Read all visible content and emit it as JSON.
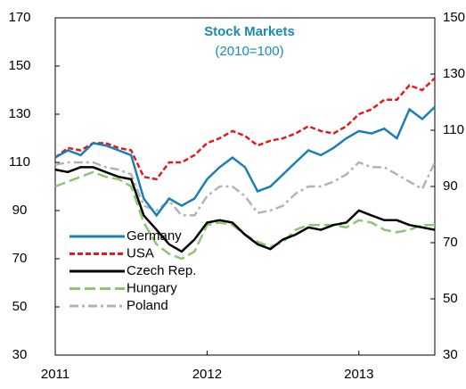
{
  "chart_data": {
    "type": "line",
    "title": "Stock Markets",
    "subtitle": "(2010=100)",
    "x": [
      2011.0,
      2011.083,
      2011.167,
      2011.25,
      2011.333,
      2011.417,
      2011.5,
      2011.583,
      2011.667,
      2011.75,
      2011.833,
      2011.917,
      2012.0,
      2012.083,
      2012.167,
      2012.25,
      2012.333,
      2012.417,
      2012.5,
      2012.583,
      2012.667,
      2012.75,
      2012.833,
      2012.917,
      2013.0,
      2013.083,
      2013.167,
      2013.25,
      2013.333,
      2013.417,
      2013.5
    ],
    "xlim": [
      2011,
      2013.5
    ],
    "xticks": [
      2011,
      2012,
      2013
    ],
    "ylim": [
      30,
      170
    ],
    "yticks": [
      30,
      50,
      70,
      90,
      110,
      130,
      150,
      170
    ],
    "y2lim": [
      30,
      150
    ],
    "y2ticks": [
      30,
      50,
      70,
      90,
      110,
      130,
      150
    ],
    "grid": false,
    "legend": "lower left",
    "series": [
      {
        "name": "Germany",
        "color": "#1a7fb5",
        "dash": "solid",
        "values": [
          112,
          115,
          113,
          118,
          117,
          115,
          113,
          95,
          88,
          95,
          92,
          95,
          103,
          108,
          112,
          108,
          98,
          100,
          105,
          110,
          115,
          113,
          116,
          120,
          123,
          122,
          124,
          120,
          132,
          128,
          133
        ]
      },
      {
        "name": "USA",
        "color": "#e31a1c",
        "dash": "dash",
        "values": [
          112,
          116,
          115,
          118,
          118,
          116,
          115,
          104,
          103,
          110,
          110,
          113,
          118,
          120,
          123,
          121,
          117,
          119,
          120,
          122,
          125,
          123,
          122,
          125,
          130,
          132,
          136,
          136,
          142,
          140,
          145
        ]
      },
      {
        "name": "Czech Rep.",
        "color": "#000000",
        "dash": "solid",
        "values": [
          107,
          106,
          108,
          108,
          106,
          104,
          103,
          88,
          82,
          76,
          73,
          78,
          85,
          86,
          85,
          80,
          76,
          74,
          78,
          80,
          83,
          82,
          84,
          85,
          90,
          88,
          86,
          86,
          84,
          83,
          82
        ]
      },
      {
        "name": "Hungary",
        "color": "#8cc672",
        "dash": "longdash",
        "values": [
          100,
          102,
          104,
          106,
          104,
          103,
          100,
          85,
          76,
          72,
          70,
          73,
          84,
          85,
          84,
          80,
          77,
          75,
          77,
          82,
          84,
          84,
          84,
          83,
          86,
          85,
          82,
          81,
          82,
          84,
          84
        ]
      },
      {
        "name": "Poland",
        "color": "#b3b3b3",
        "dash": "dashdot",
        "values": [
          109,
          110,
          110,
          110,
          108,
          107,
          105,
          92,
          90,
          94,
          88,
          88,
          96,
          100,
          100,
          96,
          89,
          90,
          92,
          97,
          100,
          100,
          102,
          105,
          110,
          108,
          108,
          105,
          102,
          99,
          110
        ]
      }
    ]
  }
}
